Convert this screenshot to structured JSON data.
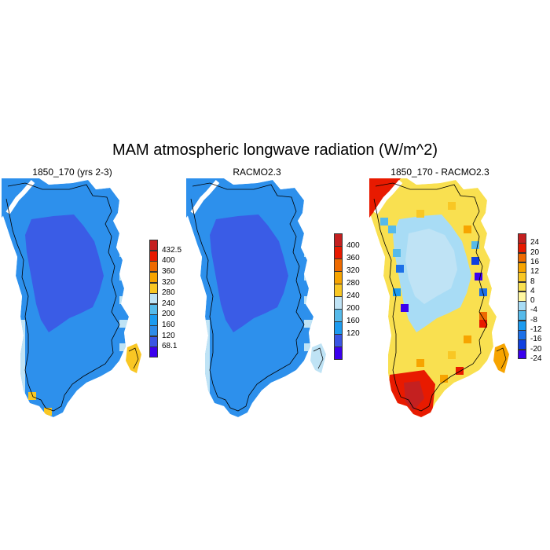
{
  "title": "MAM atmospheric longwave radiation (W/m^2)",
  "panels": [
    {
      "title": "1850_170 (yrs 2-3)",
      "variant": "absolute",
      "colorbar": {
        "colors": [
          "#3b00ee",
          "#3a55e4",
          "#2e8ce8",
          "#1c9bf0",
          "#56baea",
          "#bfe3f5",
          "#f9c724",
          "#f7a400",
          "#ee6a00",
          "#e81a00",
          "#c42020"
        ],
        "labels": [
          "68.1",
          "120",
          "160",
          "200",
          "240",
          "280",
          "320",
          "360",
          "400",
          "432.5"
        ]
      }
    },
    {
      "title": "RACMO2.3",
      "variant": "absolute",
      "colorbar": {
        "colors": [
          "#3b00ee",
          "#3a55e4",
          "#1c9bf0",
          "#56baea",
          "#bfe3f5",
          "#f9c724",
          "#f7a400",
          "#ee6a00",
          "#e81a00",
          "#c42020"
        ],
        "labels": [
          "120",
          "160",
          "200",
          "240",
          "280",
          "320",
          "360",
          "400"
        ]
      }
    },
    {
      "title": "1850_170 - RACMO2.3",
      "variant": "difference",
      "colorbar": {
        "colors": [
          "#3b00ee",
          "#1040e0",
          "#1c70e8",
          "#1c9bf0",
          "#56baea",
          "#a8dcf5",
          "#fff7a0",
          "#f9e050",
          "#f9c724",
          "#f7a400",
          "#ee6a00",
          "#e81a00",
          "#c42020"
        ],
        "labels": [
          "-24",
          "-20",
          "-16",
          "-12",
          "-8",
          "-4",
          "0",
          "4",
          "8",
          "12",
          "16",
          "20",
          "24"
        ]
      }
    }
  ]
}
